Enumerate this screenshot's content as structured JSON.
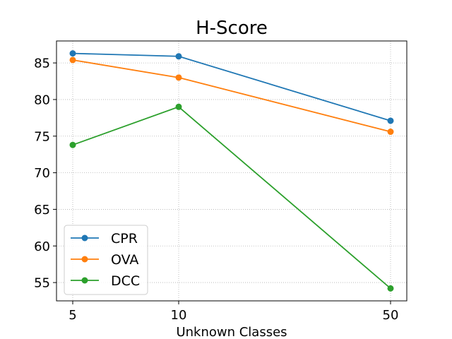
{
  "chart_data": {
    "type": "line",
    "title": "H-Score",
    "xlabel": "Unknown Classes",
    "ylabel": "",
    "x": [
      5,
      10,
      50
    ],
    "x_ticks": [
      "5",
      "10",
      "50"
    ],
    "ylim": [
      52.5,
      88
    ],
    "y_ticks": [
      55,
      60,
      65,
      70,
      75,
      80,
      85
    ],
    "y_tick_labels": [
      "55",
      "60",
      "65",
      "70",
      "75",
      "80",
      "85"
    ],
    "grid": true,
    "legend_position": "lower-left",
    "series": [
      {
        "name": "CPR",
        "color": "#1f77b4",
        "values": [
          86.3,
          85.9,
          77.1
        ]
      },
      {
        "name": "OVA",
        "color": "#ff7f0e",
        "values": [
          85.4,
          83.0,
          75.6
        ]
      },
      {
        "name": "DCC",
        "color": "#2ca02c",
        "values": [
          73.8,
          79.0,
          54.2
        ]
      }
    ]
  }
}
